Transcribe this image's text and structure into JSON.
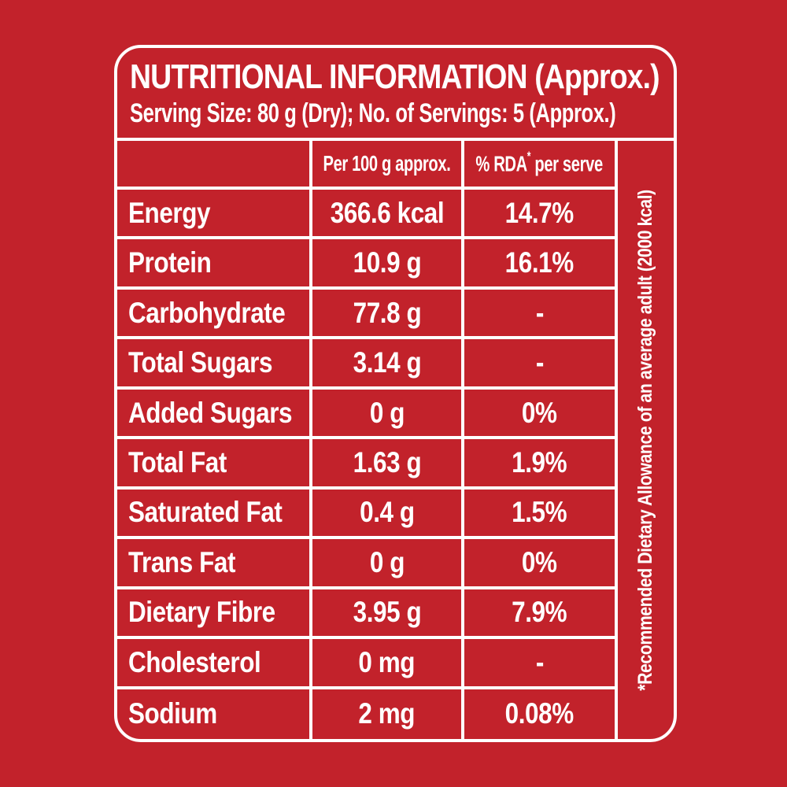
{
  "theme": {
    "background": "#c2222b",
    "text": "#ffffff",
    "line": "#ffffff"
  },
  "header": {
    "title": "NUTRITIONAL INFORMATION (Approx.)",
    "serving_info": "Serving Size: 80 g (Dry);  No. of Servings: 5 (Approx.)"
  },
  "table": {
    "column_headers": {
      "nutrient": "",
      "per_100g": "Per 100 g approx.",
      "rda_main": "% RDA",
      "rda_sup": "*",
      "rda_rest": " per serve"
    },
    "rows": [
      {
        "label": "Energy",
        "per_100g": "366.6 kcal",
        "rda": "14.7%"
      },
      {
        "label": "Protein",
        "per_100g": "10.9 g",
        "rda": "16.1%"
      },
      {
        "label": "Carbohydrate",
        "per_100g": "77.8 g",
        "rda": "-"
      },
      {
        "label": "Total Sugars",
        "per_100g": "3.14 g",
        "rda": "-"
      },
      {
        "label": "Added Sugars",
        "per_100g": "0 g",
        "rda": "0%"
      },
      {
        "label": "Total Fat",
        "per_100g": "1.63 g",
        "rda": "1.9%"
      },
      {
        "label": "Saturated Fat",
        "per_100g": "0.4 g",
        "rda": "1.5%"
      },
      {
        "label": "Trans Fat",
        "per_100g": "0 g",
        "rda": "0%"
      },
      {
        "label": "Dietary Fibre",
        "per_100g": "3.95 g",
        "rda": "7.9%"
      },
      {
        "label": "Cholesterol",
        "per_100g": "0 mg",
        "rda": "-"
      },
      {
        "label": "Sodium",
        "per_100g": "2 mg",
        "rda": "0.08%"
      }
    ],
    "footnote_vertical": "*Recommended Dietary Allowance of an average adult (2000 kcal)"
  }
}
